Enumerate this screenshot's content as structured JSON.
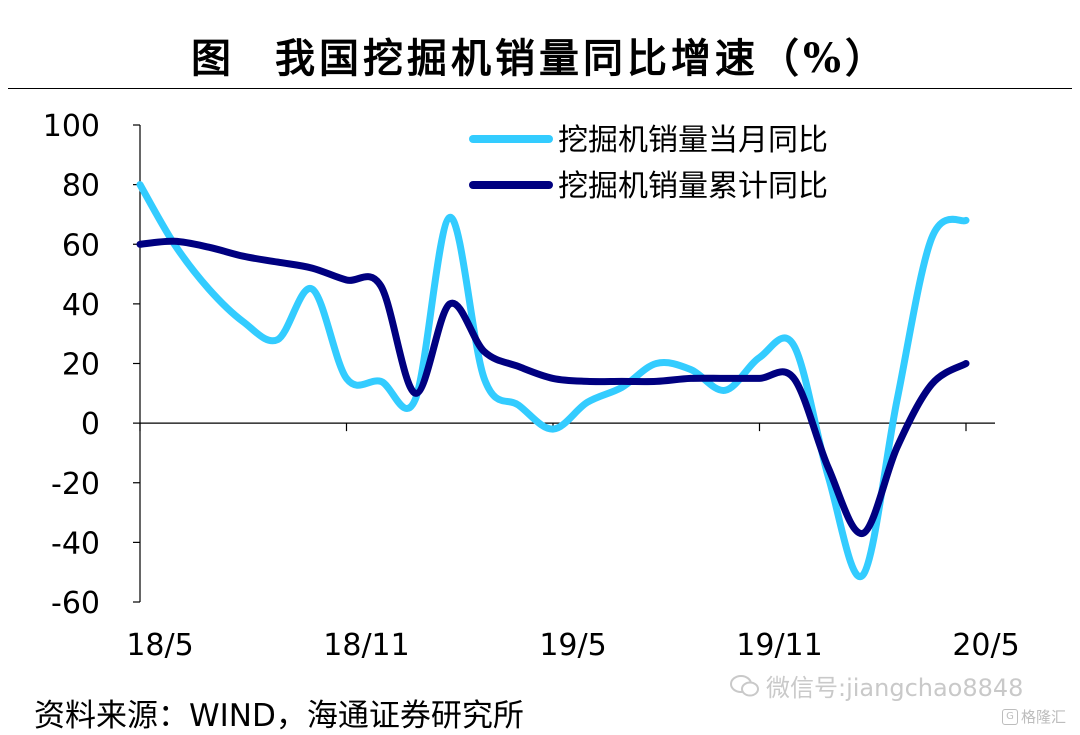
{
  "title": {
    "fig_label": "图",
    "text": "我国挖掘机销量同比增速（%）"
  },
  "source": "资料来源：WIND，海通证券研究所",
  "watermark": {
    "icon": "wechat-icon",
    "text": "微信号:jiangchao8848"
  },
  "brand": {
    "icon": "gelonghui-logo-icon",
    "text": "格隆汇"
  },
  "chart_data": {
    "type": "line",
    "title": "我国挖掘机销量同比增速（%）",
    "xlabel": "",
    "ylabel": "",
    "ylim": [
      -60,
      100
    ],
    "y_ticks": [
      100,
      80,
      60,
      40,
      20,
      0,
      -20,
      -40,
      -60
    ],
    "x": [
      "2018-05",
      "2018-06",
      "2018-07",
      "2018-08",
      "2018-09",
      "2018-10",
      "2018-11",
      "2018-12",
      "2019-01",
      "2019-02",
      "2019-03",
      "2019-04",
      "2019-05",
      "2019-06",
      "2019-07",
      "2019-08",
      "2019-09",
      "2019-10",
      "2019-11",
      "2019-12",
      "2020-01",
      "2020-02",
      "2020-03",
      "2020-04",
      "2020-05"
    ],
    "x_ticks": [
      "18/5",
      "18/11",
      "19/5",
      "19/11",
      "20/5"
    ],
    "x_tick_index": [
      0,
      6,
      12,
      18,
      24
    ],
    "grid": false,
    "legend_position": "top-right",
    "series": [
      {
        "name": "挖掘机销量当月同比",
        "color": "#33ccff",
        "values": [
          80,
          60,
          45,
          34,
          28,
          45,
          15,
          14,
          8,
          69,
          15,
          6,
          -2,
          7,
          12,
          20,
          18,
          11,
          22,
          26,
          -18,
          -51,
          8,
          62,
          68
        ]
      },
      {
        "name": "挖掘机销量累计同比",
        "color": "#000080",
        "values": [
          60,
          61,
          59,
          56,
          54,
          52,
          48,
          46,
          10,
          40,
          24,
          19,
          15,
          14,
          14,
          14,
          15,
          15,
          15,
          15,
          -15,
          -37,
          -8,
          13,
          20
        ]
      }
    ]
  }
}
